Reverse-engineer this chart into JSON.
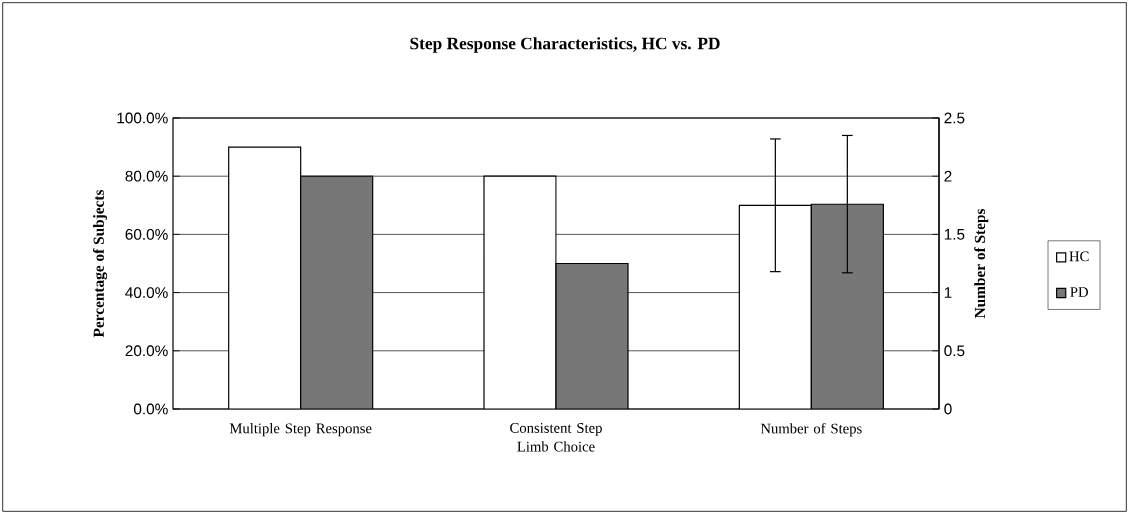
{
  "chart_data": {
    "type": "bar",
    "title": "Step Response Characteristics, HC vs. PD",
    "ylabel": "Percentage of Subjects",
    "y2label": "Number of Steps",
    "categories": [
      "Multiple Step Response",
      "Consistent Step Limb Choice",
      "Number of Steps"
    ],
    "series": [
      {
        "name": "HC",
        "color": "#ffffff",
        "values": [
          90,
          80,
          null
        ]
      },
      {
        "name": "PD",
        "color": "#777777",
        "values": [
          80,
          50,
          null
        ]
      },
      {
        "color": "#ffffff",
        "axis": "y2",
        "values": [
          null,
          null,
          1.75
        ],
        "errors": [
          null,
          null,
          0.57
        ]
      },
      {
        "color": "#777777",
        "axis": "y2",
        "values": [
          null,
          null,
          1.76
        ],
        "errors": [
          null,
          null,
          0.59
        ]
      }
    ],
    "ylim": [
      0,
      100
    ],
    "yticks": [
      {
        "value": 0,
        "label": "0.0%"
      },
      {
        "value": 20,
        "label": "20.0%"
      },
      {
        "value": 40,
        "label": "40.0%"
      },
      {
        "value": 60,
        "label": "60.0%"
      },
      {
        "value": 80,
        "label": "80.0%"
      },
      {
        "value": 100,
        "label": "100.0%"
      }
    ],
    "y2lim": [
      0,
      2.5
    ],
    "y2ticks": [
      0,
      0.5,
      1,
      1.5,
      2,
      2.5
    ],
    "grid": "y",
    "legend": "right"
  }
}
